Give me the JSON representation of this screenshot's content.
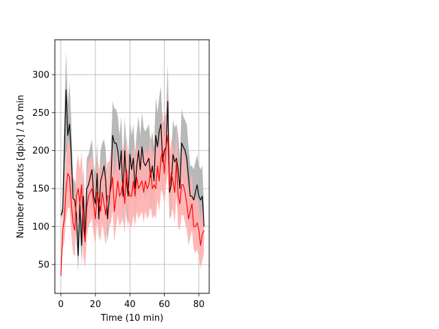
{
  "chart_data": {
    "type": "line",
    "xlabel": "Time (10 min)",
    "ylabel": "Number of bouts [dpix]  / 10 min",
    "xlim": [
      -3.5,
      86
    ],
    "ylim": [
      12,
      346
    ],
    "xticks": [
      0,
      20,
      40,
      60,
      80
    ],
    "yticks": [
      50,
      100,
      150,
      200,
      250,
      300
    ],
    "grid": true,
    "series": [
      {
        "color": "#000000",
        "band_color": "#b0b0b0",
        "x": [
          0,
          1,
          2,
          3,
          4,
          5,
          6,
          7,
          8,
          9,
          10,
          11,
          12,
          13,
          14,
          15,
          16,
          17,
          18,
          19,
          20,
          21,
          22,
          23,
          24,
          25,
          26,
          27,
          28,
          29,
          30,
          31,
          32,
          33,
          34,
          35,
          36,
          37,
          38,
          39,
          40,
          41,
          42,
          43,
          44,
          45,
          46,
          47,
          48,
          49,
          50,
          51,
          52,
          53,
          54,
          55,
          56,
          57,
          58,
          59,
          60,
          61,
          62,
          63,
          64,
          65,
          66,
          67,
          68,
          69,
          70,
          71,
          72,
          73,
          74,
          75,
          76,
          77,
          78,
          79,
          80,
          81,
          82,
          83
        ],
        "y": [
          115,
          120,
          200,
          280,
          220,
          235,
          195,
          137,
          135,
          115,
          62,
          130,
          75,
          140,
          85,
          150,
          155,
          165,
          175,
          140,
          130,
          170,
          110,
          160,
          168,
          180,
          160,
          110,
          135,
          160,
          220,
          210,
          210,
          200,
          175,
          200,
          140,
          200,
          160,
          140,
          195,
          175,
          190,
          150,
          180,
          200,
          175,
          205,
          185,
          180,
          185,
          190,
          165,
          180,
          160,
          220,
          205,
          225,
          235,
          185,
          200,
          205,
          265,
          145,
          155,
          195,
          185,
          190,
          175,
          150,
          210,
          205,
          200,
          190,
          165,
          140,
          140,
          135,
          145,
          155,
          140,
          135,
          140,
          100
        ],
        "y_low": [
          110,
          115,
          140,
          200,
          180,
          180,
          150,
          110,
          108,
          85,
          40,
          95,
          50,
          100,
          55,
          110,
          115,
          120,
          130,
          100,
          95,
          130,
          80,
          120,
          130,
          140,
          120,
          80,
          100,
          115,
          165,
          160,
          165,
          155,
          130,
          150,
          100,
          150,
          115,
          100,
          150,
          130,
          145,
          110,
          130,
          150,
          130,
          160,
          140,
          135,
          140,
          145,
          120,
          135,
          115,
          165,
          160,
          175,
          185,
          140,
          155,
          160,
          210,
          110,
          115,
          150,
          140,
          145,
          130,
          110,
          165,
          160,
          155,
          145,
          125,
          100,
          100,
          95,
          105,
          115,
          100,
          95,
          100,
          75
        ],
        "y_high": [
          120,
          125,
          250,
          330,
          260,
          290,
          240,
          165,
          160,
          150,
          90,
          165,
          110,
          180,
          120,
          190,
          195,
          205,
          215,
          180,
          170,
          210,
          150,
          200,
          210,
          215,
          200,
          150,
          175,
          200,
          265,
          255,
          255,
          245,
          220,
          245,
          185,
          245,
          205,
          185,
          240,
          220,
          235,
          195,
          225,
          245,
          220,
          250,
          230,
          225,
          230,
          235,
          210,
          225,
          205,
          270,
          250,
          270,
          285,
          230,
          245,
          250,
          315,
          185,
          195,
          240,
          230,
          235,
          220,
          190,
          255,
          245,
          240,
          235,
          205,
          180,
          180,
          175,
          185,
          195,
          180,
          175,
          180,
          125
        ]
      },
      {
        "color": "#ff0000",
        "band_color": "#ffb0b0",
        "x": [
          0,
          1,
          2,
          3,
          4,
          5,
          6,
          7,
          8,
          9,
          10,
          11,
          12,
          13,
          14,
          15,
          16,
          17,
          18,
          19,
          20,
          21,
          22,
          23,
          24,
          25,
          26,
          27,
          28,
          29,
          30,
          31,
          32,
          33,
          34,
          35,
          36,
          37,
          38,
          39,
          40,
          41,
          42,
          43,
          44,
          45,
          46,
          47,
          48,
          49,
          50,
          51,
          52,
          53,
          54,
          55,
          56,
          57,
          58,
          59,
          60,
          61,
          62,
          63,
          64,
          65,
          66,
          67,
          68,
          69,
          70,
          71,
          72,
          73,
          74,
          75,
          76,
          77,
          78,
          79,
          80,
          81,
          82,
          83
        ],
        "y": [
          35,
          95,
          110,
          150,
          170,
          165,
          130,
          105,
          95,
          140,
          150,
          130,
          155,
          100,
          80,
          125,
          140,
          145,
          150,
          130,
          110,
          145,
          135,
          120,
          145,
          130,
          115,
          140,
          140,
          150,
          165,
          120,
          140,
          160,
          140,
          145,
          160,
          130,
          175,
          150,
          140,
          140,
          160,
          140,
          165,
          150,
          155,
          160,
          145,
          160,
          150,
          155,
          175,
          150,
          155,
          150,
          180,
          160,
          190,
          200,
          170,
          205,
          220,
          150,
          170,
          160,
          145,
          185,
          140,
          130,
          155,
          155,
          145,
          130,
          110,
          120,
          130,
          100,
          100,
          105,
          95,
          75,
          90,
          95
        ],
        "y_low": [
          30,
          70,
          80,
          110,
          125,
          125,
          90,
          65,
          60,
          100,
          110,
          90,
          115,
          60,
          45,
          85,
          100,
          105,
          110,
          90,
          75,
          105,
          95,
          80,
          105,
          90,
          75,
          100,
          100,
          105,
          120,
          80,
          100,
          115,
          100,
          105,
          115,
          90,
          130,
          110,
          100,
          100,
          115,
          100,
          120,
          110,
          115,
          120,
          105,
          120,
          110,
          115,
          130,
          110,
          115,
          110,
          135,
          120,
          145,
          150,
          125,
          155,
          170,
          110,
          125,
          120,
          105,
          140,
          100,
          95,
          115,
          115,
          105,
          95,
          75,
          85,
          95,
          70,
          65,
          70,
          60,
          45,
          55,
          65
        ],
        "y_high": [
          40,
          120,
          145,
          190,
          215,
          210,
          175,
          145,
          135,
          180,
          195,
          175,
          200,
          145,
          120,
          170,
          185,
          190,
          195,
          175,
          150,
          190,
          180,
          165,
          190,
          175,
          160,
          185,
          185,
          195,
          210,
          165,
          185,
          205,
          185,
          190,
          205,
          175,
          220,
          195,
          185,
          185,
          205,
          185,
          210,
          195,
          200,
          205,
          190,
          205,
          195,
          200,
          220,
          195,
          200,
          195,
          225,
          205,
          235,
          250,
          215,
          255,
          270,
          195,
          215,
          205,
          190,
          230,
          185,
          170,
          200,
          200,
          190,
          170,
          150,
          160,
          170,
          135,
          135,
          140,
          130,
          110,
          125,
          120
        ]
      }
    ]
  }
}
